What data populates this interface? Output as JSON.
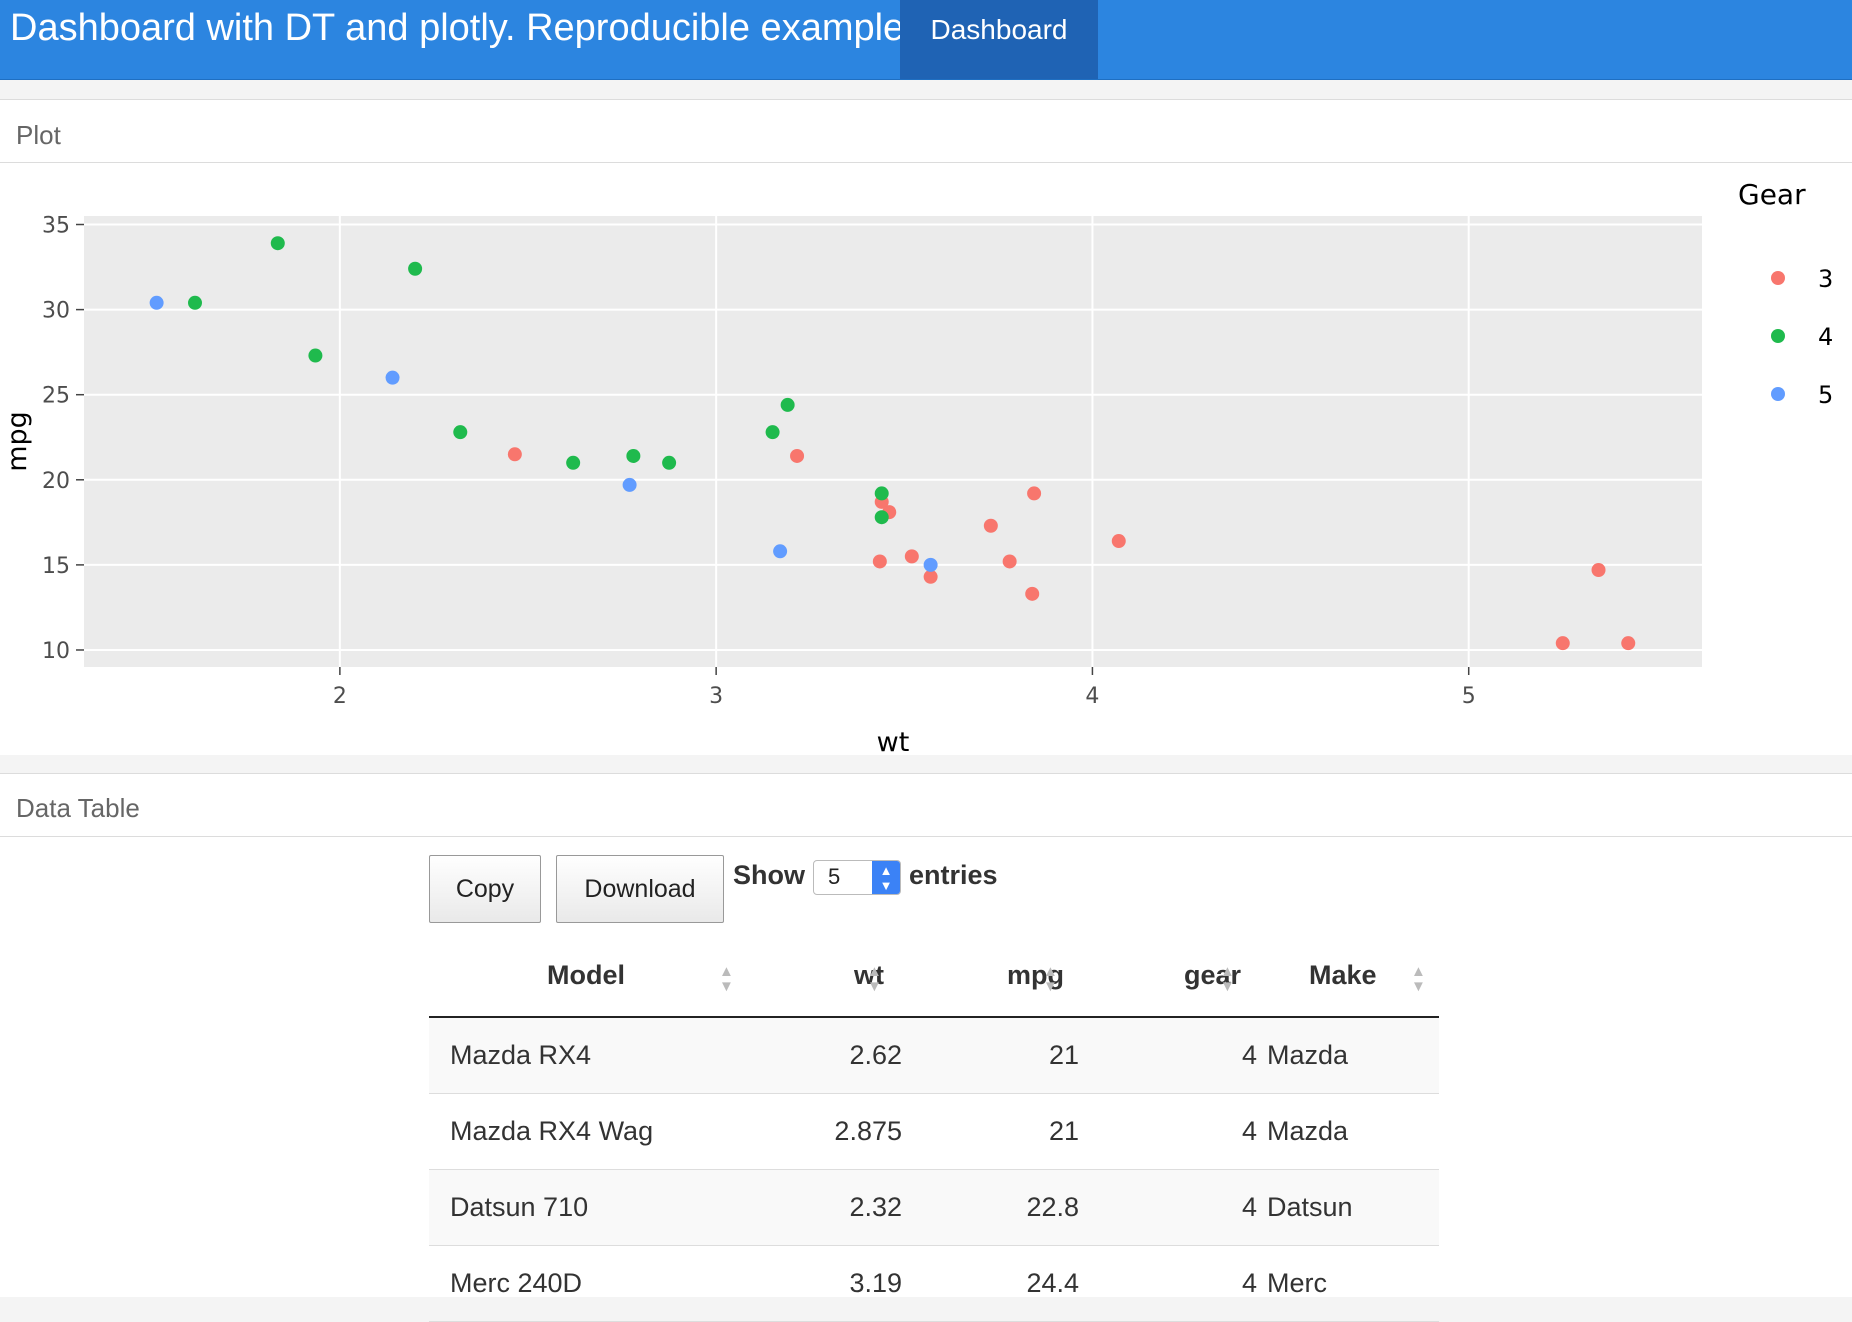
{
  "navbar": {
    "title": "Dashboard with DT and plotly. Reproducible example",
    "tab": "Dashboard",
    "color": "#2c85e0"
  },
  "plot_panel": {
    "title": "Plot"
  },
  "table_panel": {
    "title": "Data Table"
  },
  "chart_data": {
    "type": "scatter",
    "xlabel": "wt",
    "ylabel": "mpg",
    "xlim": [
      1.32,
      5.62
    ],
    "ylim": [
      9.0,
      35.5
    ],
    "xticks": [
      2,
      3,
      4,
      5
    ],
    "yticks": [
      10,
      15,
      20,
      25,
      30,
      35
    ],
    "grid": true,
    "legend_title": "Gear",
    "legend_position": "right",
    "series": [
      {
        "name": "3",
        "color": "#f8766d",
        "points": [
          [
            2.465,
            21.5
          ],
          [
            3.215,
            21.4
          ],
          [
            3.44,
            18.7
          ],
          [
            3.46,
            18.1
          ],
          [
            3.57,
            14.3
          ],
          [
            4.07,
            16.4
          ],
          [
            3.73,
            17.3
          ],
          [
            3.78,
            15.2
          ],
          [
            5.25,
            10.4
          ],
          [
            5.424,
            10.4
          ],
          [
            5.345,
            14.7
          ],
          [
            3.52,
            15.5
          ],
          [
            3.435,
            15.2
          ],
          [
            3.84,
            13.3
          ],
          [
            3.845,
            19.2
          ]
        ]
      },
      {
        "name": "4",
        "color": "#1fba4d",
        "points": [
          [
            2.62,
            21.0
          ],
          [
            2.875,
            21.0
          ],
          [
            2.32,
            22.8
          ],
          [
            3.19,
            24.4
          ],
          [
            3.15,
            22.8
          ],
          [
            3.44,
            19.2
          ],
          [
            3.44,
            17.8
          ],
          [
            2.2,
            32.4
          ],
          [
            1.615,
            30.4
          ],
          [
            1.835,
            33.9
          ],
          [
            1.935,
            27.3
          ],
          [
            2.78,
            21.4
          ]
        ]
      },
      {
        "name": "5",
        "color": "#619cff",
        "points": [
          [
            2.14,
            26.0
          ],
          [
            1.513,
            30.4
          ],
          [
            3.17,
            15.8
          ],
          [
            2.77,
            19.7
          ],
          [
            3.57,
            15.0
          ]
        ]
      }
    ]
  },
  "controls": {
    "copy": "Copy",
    "download": "Download",
    "show": "Show",
    "entries": "entries",
    "length_value": "5"
  },
  "table": {
    "columns": [
      "Model",
      "wt",
      "mpg",
      "gear",
      "Make"
    ],
    "rows": [
      [
        "Mazda RX4",
        "2.62",
        "21",
        "4",
        "Mazda"
      ],
      [
        "Mazda RX4 Wag",
        "2.875",
        "21",
        "4",
        "Mazda"
      ],
      [
        "Datsun 710",
        "2.32",
        "22.8",
        "4",
        "Datsun"
      ],
      [
        "Merc 240D",
        "3.19",
        "24.4",
        "4",
        "Merc"
      ]
    ]
  }
}
